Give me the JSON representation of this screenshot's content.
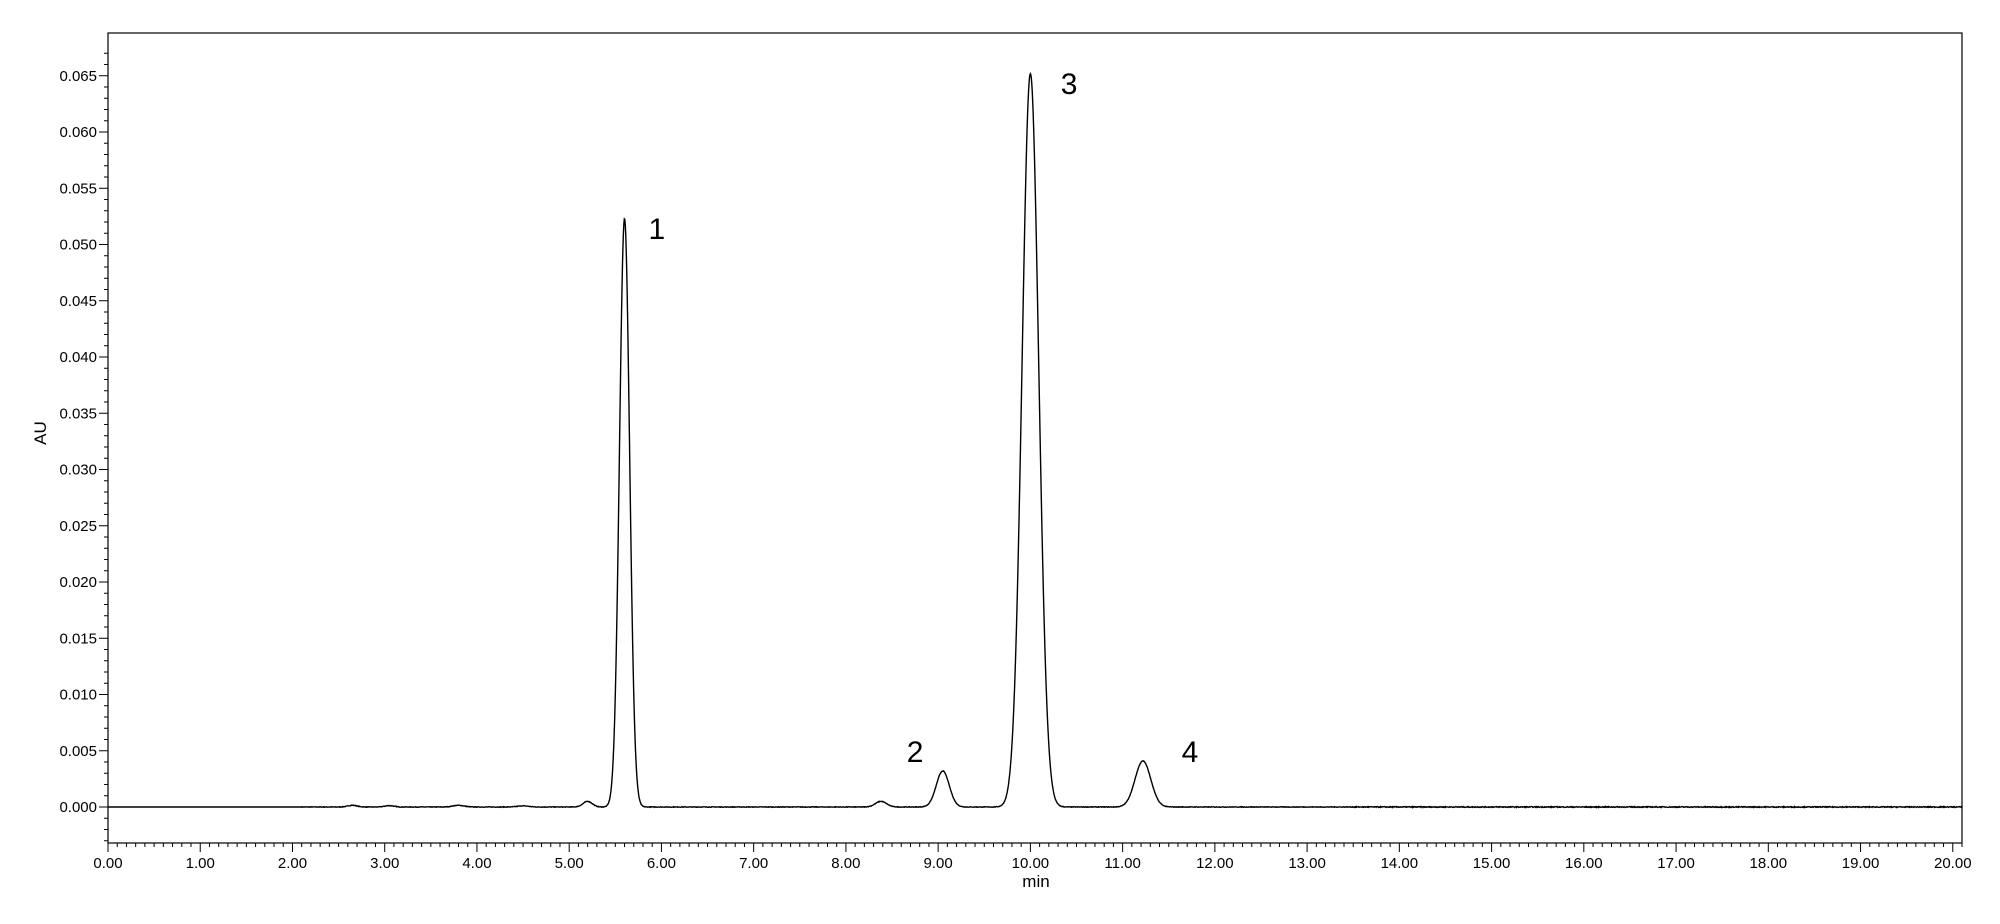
{
  "chart_data": {
    "type": "line",
    "title": "",
    "xlabel": "min",
    "ylabel": "AU",
    "xlim": [
      0,
      20.1
    ],
    "ylim": [
      -0.0032,
      0.0688
    ],
    "x_ticks": [
      "0.00",
      "1.00",
      "2.00",
      "3.00",
      "4.00",
      "5.00",
      "6.00",
      "7.00",
      "8.00",
      "9.00",
      "10.00",
      "11.00",
      "12.00",
      "13.00",
      "14.00",
      "15.00",
      "16.00",
      "17.00",
      "18.00",
      "19.00",
      "20.00"
    ],
    "y_ticks": [
      "0.000",
      "0.005",
      "0.010",
      "0.015",
      "0.020",
      "0.025",
      "0.030",
      "0.035",
      "0.040",
      "0.045",
      "0.050",
      "0.055",
      "0.060",
      "0.065"
    ],
    "grid": false,
    "line_color": "#000000",
    "baseline": 0.0,
    "noise_amplitude": 5e-05,
    "peaks": [
      {
        "label": "",
        "rt": 2.65,
        "height": 0.00015,
        "width": 0.05
      },
      {
        "label": "",
        "rt": 3.05,
        "height": 0.00012,
        "width": 0.05
      },
      {
        "label": "",
        "rt": 3.8,
        "height": 0.00015,
        "width": 0.06
      },
      {
        "label": "",
        "rt": 4.5,
        "height": 0.0001,
        "width": 0.06
      },
      {
        "label": "",
        "rt": 5.2,
        "height": 0.0005,
        "width": 0.05
      },
      {
        "label": "1",
        "rt": 5.6,
        "height": 0.0523,
        "width": 0.055
      },
      {
        "label": "",
        "rt": 8.38,
        "height": 0.0005,
        "width": 0.06
      },
      {
        "label": "2",
        "rt": 9.05,
        "height": 0.0032,
        "width": 0.07
      },
      {
        "label": "3",
        "rt": 10.0,
        "height": 0.0652,
        "width": 0.09
      },
      {
        "label": "4",
        "rt": 11.22,
        "height": 0.0041,
        "width": 0.085
      }
    ],
    "annotations": [
      {
        "text": "1",
        "x": 5.95,
        "y": 0.0505
      },
      {
        "text": "2",
        "x": 8.75,
        "y": 0.004
      },
      {
        "text": "3",
        "x": 10.42,
        "y": 0.0634
      },
      {
        "text": "4",
        "x": 11.73,
        "y": 0.004
      }
    ]
  }
}
